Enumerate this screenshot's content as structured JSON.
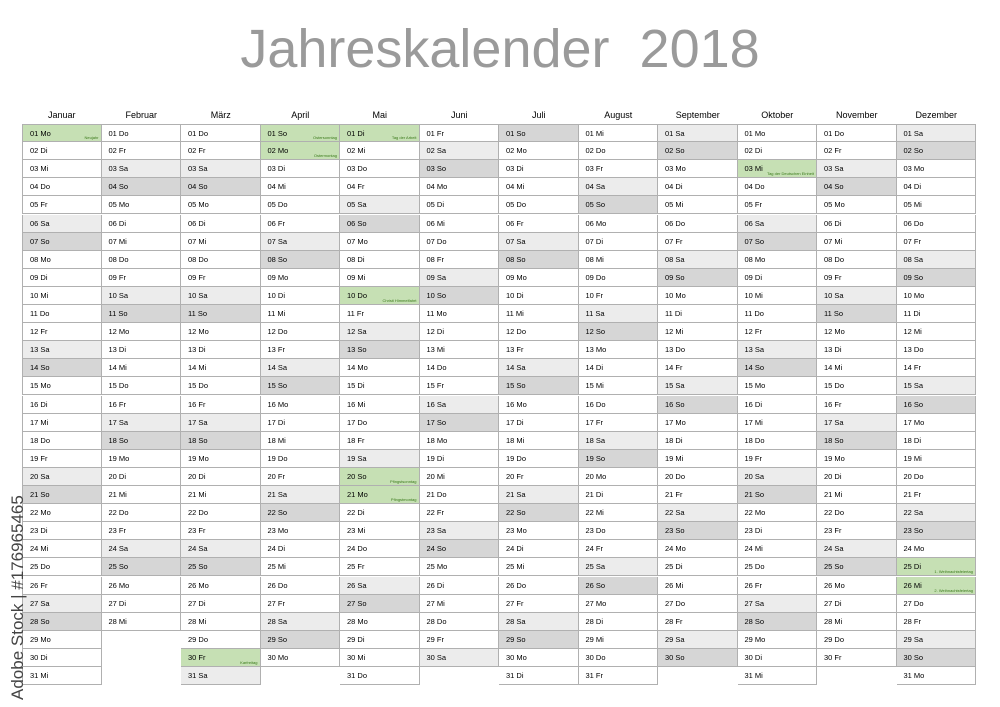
{
  "header": {
    "title": "Jahreskalender  2018"
  },
  "watermark": "Adobe Stock | #176965465",
  "months": [
    {
      "name": "Januar",
      "days": [
        {
          "day": "01 Mo",
          "note": "Neujahr"
        },
        "02 Di",
        "03 Mi",
        "04 Do",
        "05 Fr",
        "06 Sa",
        "07 So",
        "08 Mo",
        "09 Di",
        "10 Mi",
        "11 Do",
        "12 Fr",
        "13 Sa",
        "14 So",
        "15 Mo",
        "16 Di",
        "17 Mi",
        "18 Do",
        "19 Fr",
        "20 Sa",
        "21 So",
        "22 Mo",
        "23 Di",
        "24 Mi",
        "25 Do",
        "26 Fr",
        "27 Sa",
        "28 So",
        "29 Mo",
        "30 Di",
        "31 Mi"
      ]
    },
    {
      "name": "Februar",
      "days": [
        "01 Do",
        "02 Fr",
        "03 Sa",
        "04 So",
        "05 Mo",
        "06 Di",
        "07 Mi",
        "08 Do",
        "09 Fr",
        "10 Sa",
        "11 So",
        "12 Mo",
        "13 Di",
        "14 Mi",
        "15 Do",
        "16 Fr",
        "17 Sa",
        "18 So",
        "19 Mo",
        "20 Di",
        "21 Mi",
        "22 Do",
        "23 Fr",
        "24 Sa",
        "25 So",
        "26 Mo",
        "27 Di",
        "28 Mi"
      ]
    },
    {
      "name": "März",
      "days": [
        "01 Do",
        "02 Fr",
        "03 Sa",
        "04 So",
        "05 Mo",
        "06 Di",
        "07 Mi",
        "08 Do",
        "09 Fr",
        "10 Sa",
        "11 So",
        "12 Mo",
        "13 Di",
        "14 Mi",
        "15 Do",
        "16 Fr",
        "17 Sa",
        "18 So",
        "19 Mo",
        "20 Di",
        "21 Mi",
        "22 Do",
        "23 Fr",
        "24 Sa",
        "25 So",
        "26 Mo",
        "27 Di",
        "28 Mi",
        "29 Do",
        {
          "day": "30 Fr",
          "note": "Karfreitag"
        },
        "31 Sa"
      ]
    },
    {
      "name": "April",
      "days": [
        {
          "day": "01 So",
          "note": "Ostersonntag"
        },
        {
          "day": "02 Mo",
          "note": "Ostermontag"
        },
        "03 Di",
        "04 Mi",
        "05 Do",
        "06 Fr",
        "07 Sa",
        "08 So",
        "09 Mo",
        "10 Di",
        "11 Mi",
        "12 Do",
        "13 Fr",
        "14 Sa",
        "15 So",
        "16 Mo",
        "17 Di",
        "18 Mi",
        "19 Do",
        "20 Fr",
        "21 Sa",
        "22 So",
        "23 Mo",
        "24 Di",
        "25 Mi",
        "26 Do",
        "27 Fr",
        "28 Sa",
        "29 So",
        "30 Mo"
      ]
    },
    {
      "name": "Mai",
      "days": [
        {
          "day": "01 Di",
          "note": "Tag der Arbeit"
        },
        "02 Mi",
        "03 Do",
        "04 Fr",
        "05 Sa",
        "06 So",
        "07 Mo",
        "08 Di",
        "09 Mi",
        {
          "day": "10 Do",
          "note": "Christi Himmelfahrt"
        },
        "11 Fr",
        "12 Sa",
        "13 So",
        "14 Mo",
        "15 Di",
        "16 Mi",
        "17 Do",
        "18 Fr",
        "19 Sa",
        {
          "day": "20 So",
          "note": "Pfingstsonntag"
        },
        {
          "day": "21 Mo",
          "note": "Pfingstmontag"
        },
        "22 Di",
        "23 Mi",
        "24 Do",
        "25 Fr",
        "26 Sa",
        "27 So",
        "28 Mo",
        "29 Di",
        "30 Mi",
        "31 Do"
      ]
    },
    {
      "name": "Juni",
      "days": [
        "01 Fr",
        "02 Sa",
        "03 So",
        "04 Mo",
        "05 Di",
        "06 Mi",
        "07 Do",
        "08 Fr",
        "09 Sa",
        "10 So",
        "11 Mo",
        "12 Di",
        "13 Mi",
        "14 Do",
        "15 Fr",
        "16 Sa",
        "17 So",
        "18 Mo",
        "19 Di",
        "20 Mi",
        "21 Do",
        "22 Fr",
        "23 Sa",
        "24 So",
        "25 Mo",
        "26 Di",
        "27 Mi",
        "28 Do",
        "29 Fr",
        "30 Sa"
      ]
    },
    {
      "name": "Juli",
      "days": [
        "01 So",
        "02 Mo",
        "03 Di",
        "04 Mi",
        "05 Do",
        "06 Fr",
        "07 Sa",
        "08 So",
        "09 Mo",
        "10 Di",
        "11 Mi",
        "12 Do",
        "13 Fr",
        "14 Sa",
        "15 So",
        "16 Mo",
        "17 Di",
        "18 Mi",
        "19 Do",
        "20 Fr",
        "21 Sa",
        "22 So",
        "23 Mo",
        "24 Di",
        "25 Mi",
        "26 Do",
        "27 Fr",
        "28 Sa",
        "29 So",
        "30 Mo",
        "31 Di"
      ]
    },
    {
      "name": "August",
      "days": [
        "01 Mi",
        "02 Do",
        "03 Fr",
        "04 Sa",
        "05 So",
        "06 Mo",
        "07 Di",
        "08 Mi",
        "09 Do",
        "10 Fr",
        "11 Sa",
        "12 So",
        "13 Mo",
        "14 Di",
        "15 Mi",
        "16 Do",
        "17 Fr",
        "18 Sa",
        "19 So",
        "20 Mo",
        "21 Di",
        "22 Mi",
        "23 Do",
        "24 Fr",
        "25 Sa",
        "26 So",
        "27 Mo",
        "28 Di",
        "29 Mi",
        "30 Do",
        "31 Fr"
      ]
    },
    {
      "name": "September",
      "days": [
        "01 Sa",
        "02 So",
        "03 Mo",
        "04 Di",
        "05 Mi",
        "06 Do",
        "07 Fr",
        "08 Sa",
        "09 So",
        "10 Mo",
        "11 Di",
        "12 Mi",
        "13 Do",
        "14 Fr",
        "15 Sa",
        "16 So",
        "17 Mo",
        "18 Di",
        "19 Mi",
        "20 Do",
        "21 Fr",
        "22 Sa",
        "23 So",
        "24 Mo",
        "25 Di",
        "26 Mi",
        "27 Do",
        "28 Fr",
        "29 Sa",
        "30 So"
      ]
    },
    {
      "name": "Oktober",
      "days": [
        "01 Mo",
        "02 Di",
        {
          "day": "03 Mi",
          "note": "Tag der Deutschen Einheit"
        },
        "04 Do",
        "05 Fr",
        "06 Sa",
        "07 So",
        "08 Mo",
        "09 Di",
        "10 Mi",
        "11 Do",
        "12 Fr",
        "13 Sa",
        "14 So",
        "15 Mo",
        "16 Di",
        "17 Mi",
        "18 Do",
        "19 Fr",
        "20 Sa",
        "21 So",
        "22 Mo",
        "23 Di",
        "24 Mi",
        "25 Do",
        "26 Fr",
        "27 Sa",
        "28 So",
        "29 Mo",
        "30 Di",
        "31 Mi"
      ]
    },
    {
      "name": "November",
      "days": [
        "01 Do",
        "02 Fr",
        "03 Sa",
        "04 So",
        "05 Mo",
        "06 Di",
        "07 Mi",
        "08 Do",
        "09 Fr",
        "10 Sa",
        "11 So",
        "12 Mo",
        "13 Di",
        "14 Mi",
        "15 Do",
        "16 Fr",
        "17 Sa",
        "18 So",
        "19 Mo",
        "20 Di",
        "21 Mi",
        "22 Do",
        "23 Fr",
        "24 Sa",
        "25 So",
        "26 Mo",
        "27 Di",
        "28 Mi",
        "29 Do",
        "30 Fr"
      ]
    },
    {
      "name": "Dezember",
      "days": [
        "01 Sa",
        "02 So",
        "03 Mo",
        "04 Di",
        "05 Mi",
        "06 Do",
        "07 Fr",
        "08 Sa",
        "09 So",
        "10 Mo",
        "11 Di",
        "12 Mi",
        "13 Do",
        "14 Fr",
        "15 Sa",
        "16 So",
        "17 Mo",
        "18 Di",
        "19 Mi",
        "20 Do",
        "21 Fr",
        "22 Sa",
        "23 So",
        "24 Mo",
        {
          "day": "25 Di",
          "note": "1. Weihnachtsfeiertag"
        },
        {
          "day": "26 Mi",
          "note": "2. Weihnachtsfeiertag"
        },
        "27 Do",
        "28 Fr",
        "29 Sa",
        "30 So",
        "31 Mo"
      ]
    }
  ]
}
